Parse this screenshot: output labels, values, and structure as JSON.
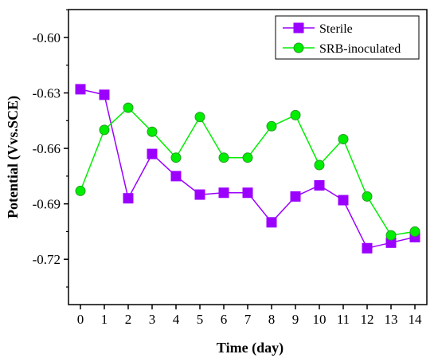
{
  "chart_data": {
    "type": "line",
    "xlabel": "Time (day)",
    "ylabel": "Potential (Vvs.SCE)",
    "x": [
      0,
      1,
      2,
      3,
      4,
      5,
      6,
      7,
      8,
      9,
      10,
      11,
      12,
      13,
      14
    ],
    "xlim": [
      -0.5,
      14.5
    ],
    "ylim": [
      -0.7445,
      -0.5849
    ],
    "yticks": [
      -0.6,
      -0.63,
      -0.66,
      -0.69,
      -0.72
    ],
    "ytick_labels": [
      "-0.60",
      "-0.63",
      "-0.66",
      "-0.69",
      "-0.72"
    ],
    "xtick_labels": [
      "0",
      "1",
      "2",
      "3",
      "4",
      "5",
      "6",
      "7",
      "8",
      "9",
      "10",
      "11",
      "12",
      "13",
      "14"
    ],
    "grid": false,
    "legend_position": "top-right",
    "series": [
      {
        "name": "Sterile",
        "color": "#9B00FF",
        "marker": "square",
        "values": [
          -0.628,
          -0.631,
          -0.687,
          -0.663,
          -0.675,
          -0.685,
          -0.684,
          -0.684,
          -0.7,
          -0.686,
          -0.68,
          -0.688,
          -0.714,
          -0.711,
          -0.708
        ]
      },
      {
        "name": "SRB-inoculated",
        "color": "#00EE00",
        "marker": "circle",
        "values": [
          -0.683,
          -0.65,
          -0.638,
          -0.651,
          -0.665,
          -0.643,
          -0.665,
          -0.665,
          -0.648,
          -0.642,
          -0.669,
          -0.655,
          -0.686,
          -0.707,
          -0.705
        ]
      }
    ]
  }
}
